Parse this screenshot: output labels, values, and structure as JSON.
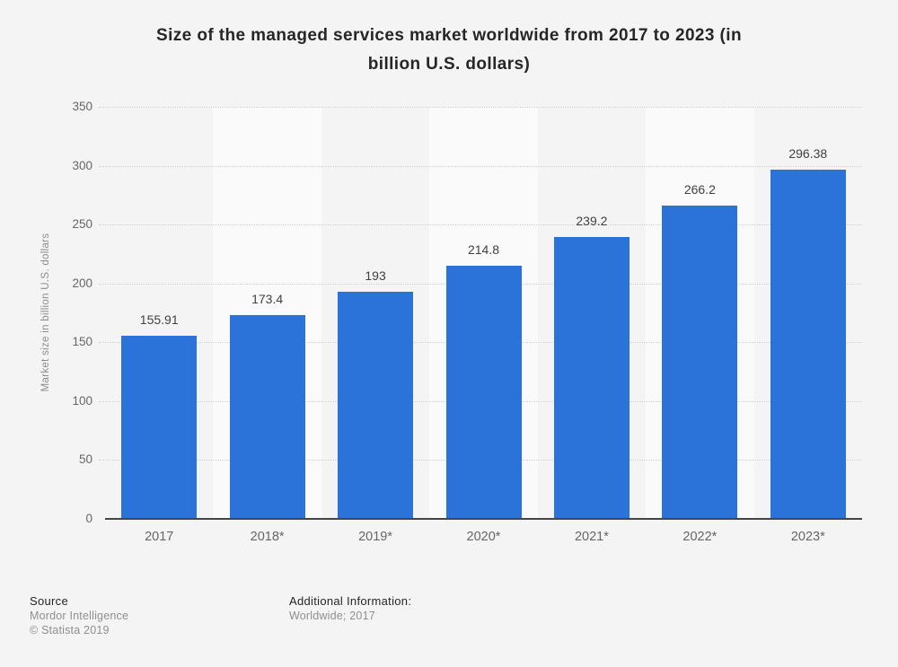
{
  "header": {
    "title_line1": "Size of the managed services market worldwide from 2017 to 2023 (in",
    "title_line2": "billion U.S. dollars)"
  },
  "chart_data": {
    "type": "bar",
    "title": "Size of the managed services market worldwide from 2017 to 2023 (in billion U.S. dollars)",
    "categories": [
      "2017",
      "2018*",
      "2019*",
      "2020*",
      "2021*",
      "2022*",
      "2023*"
    ],
    "values": [
      155.91,
      173.4,
      193,
      214.8,
      239.2,
      266.2,
      296.38
    ],
    "value_labels": [
      "155.91",
      "173.4",
      "193",
      "214.8",
      "239.2",
      "266.2",
      "296.38"
    ],
    "xlabel": "",
    "ylabel": "Market size in billion U.S. dollars",
    "ylim": [
      0,
      350
    ],
    "yticks": [
      0,
      50,
      100,
      150,
      200,
      250,
      300,
      350
    ],
    "grid": true,
    "legend": false,
    "bar_color": "#2b73d9"
  },
  "footer": {
    "source_label": "Source",
    "source_name": "Mordor Intelligence",
    "copyright": "© Statista 2019",
    "additional_info_label": "Additional Information:",
    "additional_info_value": "Worldwide; 2017"
  },
  "colors": {
    "page_background": "#f4f4f4",
    "band_light": "#fafafa",
    "gridline": "#d0d0d0",
    "axis_line": "#454545",
    "bar": "#2b73d9",
    "title_text": "#262626",
    "muted_text": "#8f8f8f",
    "tick_text": "#666666"
  }
}
